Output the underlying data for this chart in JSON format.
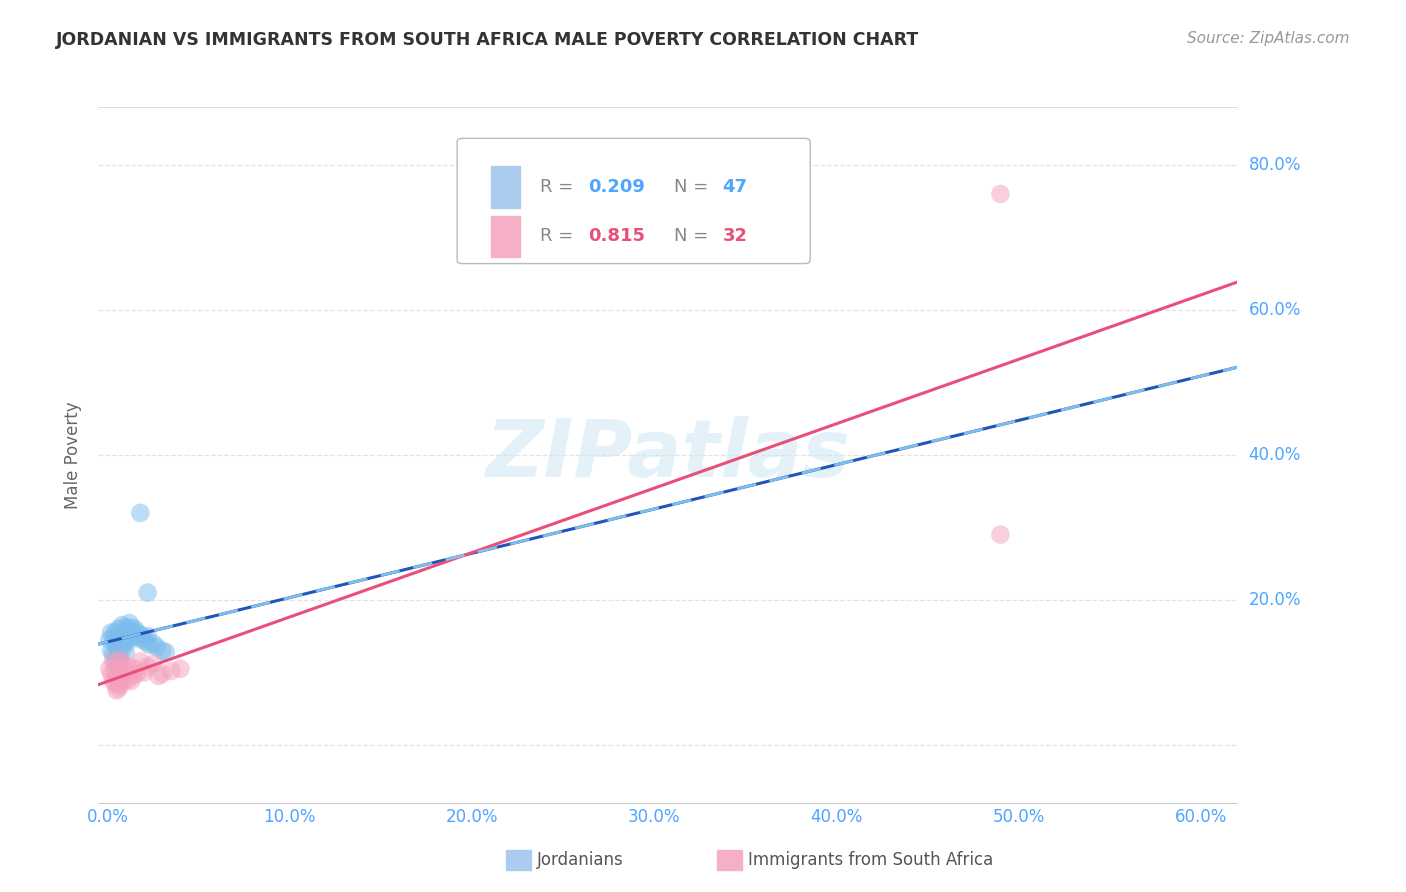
{
  "title": "JORDANIAN VS IMMIGRANTS FROM SOUTH AFRICA MALE POVERTY CORRELATION CHART",
  "source": "Source: ZipAtlas.com",
  "ylabel": "Male Poverty",
  "blue_color": "#7bbcec",
  "pink_color": "#f4a0bc",
  "trend_blue_solid": "#2255bb",
  "trend_pink_solid": "#e8507a",
  "trend_blue_dashed": "#88ccee",
  "watermark_color": "#cce5f5",
  "jordanians_x": [
    0.001,
    0.002,
    0.002,
    0.003,
    0.003,
    0.004,
    0.004,
    0.004,
    0.005,
    0.005,
    0.005,
    0.006,
    0.006,
    0.006,
    0.007,
    0.007,
    0.007,
    0.008,
    0.008,
    0.008,
    0.009,
    0.009,
    0.01,
    0.01,
    0.01,
    0.011,
    0.011,
    0.012,
    0.012,
    0.013,
    0.013,
    0.014,
    0.015,
    0.016,
    0.017,
    0.018,
    0.019,
    0.02,
    0.021,
    0.022,
    0.023,
    0.025,
    0.027,
    0.03,
    0.032,
    0.018,
    0.022
  ],
  "jordanians_y": [
    0.145,
    0.155,
    0.13,
    0.148,
    0.125,
    0.14,
    0.155,
    0.115,
    0.15,
    0.135,
    0.12,
    0.16,
    0.145,
    0.128,
    0.152,
    0.138,
    0.118,
    0.165,
    0.148,
    0.132,
    0.155,
    0.14,
    0.162,
    0.145,
    0.128,
    0.158,
    0.142,
    0.168,
    0.15,
    0.162,
    0.148,
    0.155,
    0.16,
    0.155,
    0.148,
    0.152,
    0.145,
    0.148,
    0.142,
    0.15,
    0.138,
    0.14,
    0.135,
    0.13,
    0.128,
    0.32,
    0.21
  ],
  "sa_x": [
    0.001,
    0.002,
    0.003,
    0.003,
    0.004,
    0.004,
    0.005,
    0.005,
    0.006,
    0.006,
    0.007,
    0.007,
    0.008,
    0.008,
    0.009,
    0.01,
    0.011,
    0.012,
    0.013,
    0.014,
    0.015,
    0.016,
    0.018,
    0.02,
    0.022,
    0.025,
    0.028,
    0.03,
    0.035,
    0.04,
    0.49,
    0.49
  ],
  "sa_y": [
    0.105,
    0.098,
    0.115,
    0.088,
    0.102,
    0.085,
    0.095,
    0.075,
    0.108,
    0.078,
    0.118,
    0.082,
    0.112,
    0.088,
    0.095,
    0.102,
    0.09,
    0.108,
    0.088,
    0.095,
    0.105,
    0.098,
    0.115,
    0.1,
    0.108,
    0.112,
    0.095,
    0.098,
    0.102,
    0.105,
    0.29,
    0.76
  ],
  "xlim": [
    -0.005,
    0.62
  ],
  "ylim": [
    -0.08,
    0.88
  ],
  "xticks": [
    0.0,
    0.1,
    0.2,
    0.3,
    0.4,
    0.5,
    0.6
  ],
  "yticks": [
    0.0,
    0.2,
    0.4,
    0.6,
    0.8
  ],
  "legend_R1": "0.209",
  "legend_N1": "47",
  "legend_R2": "0.815",
  "legend_N2": "32",
  "tick_color": "#4da6ff",
  "grid_color": "#dddddd",
  "title_color": "#333333",
  "source_color": "#999999",
  "ylabel_color": "#666666"
}
